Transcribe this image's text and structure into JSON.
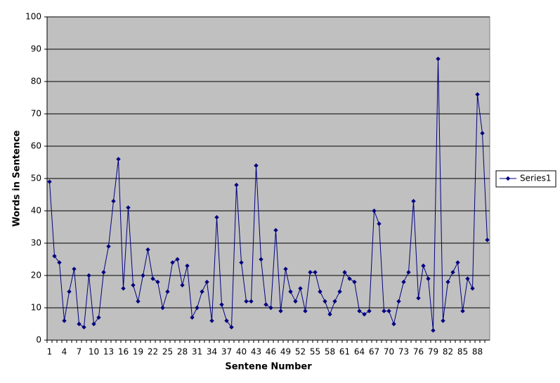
{
  "chart_data": {
    "type": "line",
    "x_label": "Sentene Number",
    "y_label": "Words in Sentence",
    "categories": [
      "1",
      null,
      null,
      "4",
      null,
      null,
      "7",
      null,
      null,
      "10",
      null,
      null,
      "13",
      null,
      null,
      "16",
      null,
      null,
      "19",
      null,
      null,
      "22",
      null,
      null,
      "25",
      null,
      null,
      "28",
      null,
      null,
      "31",
      null,
      null,
      "34",
      null,
      null,
      "37",
      null,
      null,
      "40",
      null,
      null,
      "43",
      null,
      null,
      "46",
      null,
      null,
      "49",
      null,
      null,
      "52",
      null,
      null,
      "55",
      null,
      null,
      "58",
      null,
      null,
      "61",
      null,
      null,
      "64",
      null,
      null,
      "67",
      null,
      null,
      "70",
      null,
      null,
      "73",
      null,
      null,
      "76",
      null,
      null,
      "79",
      null,
      null,
      "82",
      null,
      null,
      "85",
      null,
      null,
      "88",
      null,
      null
    ],
    "series": [
      {
        "name": "Series1",
        "color": "#000080",
        "values": [
          49,
          26,
          24,
          6,
          15,
          22,
          5,
          4,
          20,
          5,
          7,
          21,
          29,
          43,
          56,
          16,
          41,
          17,
          12,
          20,
          28,
          19,
          18,
          10,
          15,
          24,
          25,
          17,
          23,
          7,
          10,
          15,
          18,
          6,
          38,
          11,
          6,
          4,
          48,
          24,
          12,
          12,
          54,
          25,
          11,
          10,
          34,
          9,
          22,
          15,
          12,
          16,
          9,
          21,
          21,
          15,
          12,
          8,
          12,
          15,
          21,
          19,
          18,
          9,
          8,
          9,
          40,
          36,
          9,
          9,
          5,
          12,
          18,
          21,
          43,
          13,
          23,
          19,
          3,
          87,
          6,
          18,
          21,
          24,
          9,
          19,
          16,
          76,
          64,
          31
        ]
      }
    ],
    "ylim": [
      0,
      100
    ],
    "yticks": [
      0,
      10,
      20,
      30,
      40,
      50,
      60,
      70,
      80,
      90,
      100
    ],
    "grid": true,
    "legend": "right",
    "plot_background": "#c0c0c0"
  }
}
